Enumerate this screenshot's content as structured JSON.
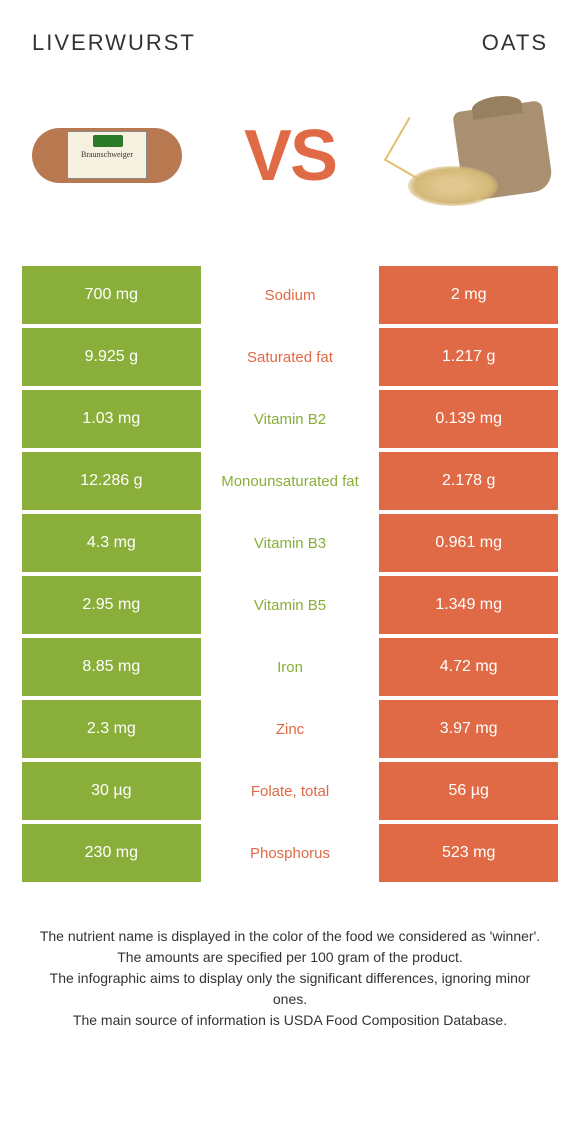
{
  "colors": {
    "left_color": "#8aae3a",
    "right_color": "#e06a45",
    "vs_color": "#e06a45",
    "text_dark": "#333333",
    "text_light": "#ffffff",
    "bg": "#ffffff"
  },
  "header": {
    "left_title": "Liverwurst",
    "right_title": "Oats",
    "vs_label": "VS",
    "left_image_label": "Braunschweiger"
  },
  "nutrients": [
    {
      "label": "Sodium",
      "left": "700 mg",
      "right": "2 mg",
      "winner": "right"
    },
    {
      "label": "Saturated fat",
      "left": "9.925 g",
      "right": "1.217 g",
      "winner": "right"
    },
    {
      "label": "Vitamin B2",
      "left": "1.03 mg",
      "right": "0.139 mg",
      "winner": "left"
    },
    {
      "label": "Monounsaturated fat",
      "left": "12.286 g",
      "right": "2.178 g",
      "winner": "left"
    },
    {
      "label": "Vitamin B3",
      "left": "4.3 mg",
      "right": "0.961 mg",
      "winner": "left"
    },
    {
      "label": "Vitamin B5",
      "left": "2.95 mg",
      "right": "1.349 mg",
      "winner": "left"
    },
    {
      "label": "Iron",
      "left": "8.85 mg",
      "right": "4.72 mg",
      "winner": "left"
    },
    {
      "label": "Zinc",
      "left": "2.3 mg",
      "right": "3.97 mg",
      "winner": "right"
    },
    {
      "label": "Folate, total",
      "left": "30 µg",
      "right": "56 µg",
      "winner": "right"
    },
    {
      "label": "Phosphorus",
      "left": "230 mg",
      "right": "523 mg",
      "winner": "right"
    }
  ],
  "footer": {
    "line1": "The nutrient name is displayed in the color of the food we considered as 'winner'.",
    "line2": "The amounts are specified per 100 gram of the product.",
    "line3": "The infographic aims to display only the significant differences, ignoring minor ones.",
    "line4": "The main source of information is USDA Food Composition Database."
  }
}
